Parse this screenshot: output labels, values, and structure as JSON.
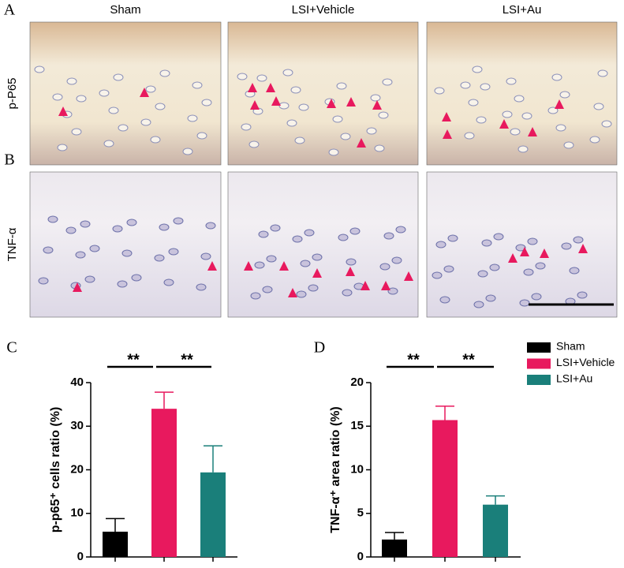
{
  "image_panels": {
    "columns": [
      "Sham",
      "LSI+Vehicle",
      "LSI+Au"
    ],
    "rows": [
      {
        "letter": "A",
        "label": "p-P65"
      },
      {
        "letter": "B",
        "label": "TNF-α"
      }
    ]
  },
  "chart_data": [
    {
      "type": "bar",
      "letter": "C",
      "ylabel": "p-p65⁺ cells ratio (%)",
      "categories": [
        "Sham",
        "LSI+Vehicle",
        "LSI+Au"
      ],
      "colors": [
        "#000000",
        "#e8195e",
        "#1a7f7a"
      ],
      "values": [
        5.8,
        34,
        19.4
      ],
      "errors": [
        3.0,
        3.8,
        6.1
      ],
      "significance": [
        "**",
        "**"
      ],
      "ylim": [
        0,
        40
      ],
      "yticks": [
        0,
        10,
        20,
        30,
        40
      ],
      "legend": false
    },
    {
      "type": "bar",
      "letter": "D",
      "ylabel": "TNF-α⁺ area ratio (%)",
      "categories": [
        "Sham",
        "LSI+Vehicle",
        "LSI+Au"
      ],
      "colors": [
        "#000000",
        "#e8195e",
        "#1a7f7a"
      ],
      "values": [
        2.0,
        15.7,
        6.0
      ],
      "errors": [
        0.8,
        1.6,
        1.0
      ],
      "significance": [
        "**",
        "**"
      ],
      "ylim": [
        0,
        20
      ],
      "yticks": [
        0,
        5,
        10,
        15,
        20
      ],
      "legend": "upper right"
    }
  ]
}
